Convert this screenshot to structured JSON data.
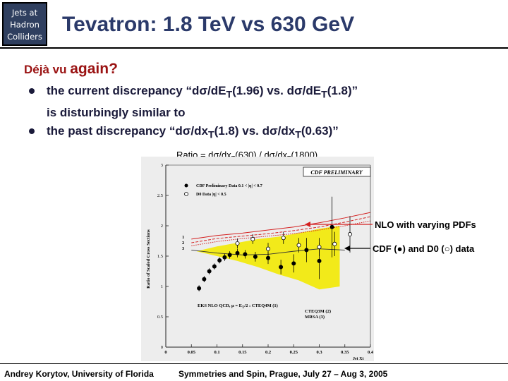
{
  "header": {
    "badge_lines": [
      "Jets at",
      "Hadron",
      "Colliders"
    ],
    "title": "Tevatron: 1.8 TeV vs 630 GeV"
  },
  "subhead": {
    "prefix": "Déjà vu",
    "word": "again?"
  },
  "bullets": {
    "b1_a": "the current discrepancy “d",
    "b1_sigma1": "σ",
    "b1_b": "/dE",
    "b1_sub1": "T",
    "b1_c": "(1.96) vs. d",
    "b1_sigma2": "σ",
    "b1_d": "/dE",
    "b1_sub2": "T",
    "b1_e": "(1.8)”",
    "b1_line2": "is disturbingly similar to",
    "b2_a": "the past discrepancy “d",
    "b2_sigma1": "σ",
    "b2_b": "/dx",
    "b2_sub1": "T",
    "b2_c": "(1.8) vs. d",
    "b2_sigma2": "σ",
    "b2_d": "/dx",
    "b2_sub2": "T",
    "b2_e": "(0.63)”"
  },
  "ratio_caption": {
    "a": "Ratio = dσ/dx",
    "sub1": "T",
    "b": "(630) / dσ/dx",
    "sub2": "T",
    "c": "(1800)"
  },
  "callouts": {
    "nlo": "NLO with varying PDFs",
    "data": "CDF (●) and D0 (○) data"
  },
  "plot": {
    "banner": "CDF PRELIMINARY",
    "legend_cdf": "CDF Preliminary Data 0.1 < |η| < 0.7",
    "legend_d0": "D0 Data |η| < 0.5",
    "ylabel": "Ratio of Scaled Cross Sections",
    "xlabel": "Jet Xt",
    "theory_1": "EKS NLO QCD, μ = E",
    "theory_1b": "T",
    "theory_1c": "/2 : CTEQ4M (1)",
    "theory_2": "CTEQ3M (2)",
    "theory_3": "MRSA (3)",
    "curve_labels": [
      "1",
      "2",
      "3"
    ],
    "colors": {
      "band": "#f2ea1a",
      "nlo": "#d42020",
      "axis": "#222222"
    }
  },
  "chart_data": {
    "type": "scatter",
    "title": "CDF PRELIMINARY",
    "xlabel": "Jet Xt",
    "ylabel": "Ratio of Scaled Cross Sections",
    "xlim": [
      0,
      0.4
    ],
    "ylim": [
      0,
      3
    ],
    "xticks": [
      "0",
      "0.05",
      "0.1",
      "0.15",
      "0.2",
      "0.25",
      "0.3",
      "0.35",
      "0.4"
    ],
    "yticks": [
      "0",
      "0.5",
      "1",
      "1.5",
      "2",
      "2.5",
      "3"
    ],
    "series": [
      {
        "name": "CDF Preliminary Data 0.1 < |η| < 0.7",
        "marker": "filled",
        "x": [
          0.065,
          0.075,
          0.085,
          0.095,
          0.105,
          0.115,
          0.125,
          0.14,
          0.155,
          0.175,
          0.2,
          0.225,
          0.25,
          0.275,
          0.3,
          0.325
        ],
        "y": [
          0.97,
          1.12,
          1.25,
          1.33,
          1.43,
          1.48,
          1.52,
          1.55,
          1.53,
          1.49,
          1.47,
          1.32,
          1.38,
          1.6,
          1.42,
          1.98
        ],
        "err": [
          0.05,
          0.05,
          0.05,
          0.05,
          0.05,
          0.06,
          0.06,
          0.07,
          0.07,
          0.08,
          0.1,
          0.12,
          0.15,
          0.2,
          0.3,
          0.5
        ]
      },
      {
        "name": "D0 Data |η| < 0.5",
        "marker": "open",
        "x": [
          0.14,
          0.17,
          0.2,
          0.23,
          0.26,
          0.3,
          0.33,
          0.36
        ],
        "y": [
          1.71,
          1.78,
          1.62,
          1.8,
          1.68,
          1.65,
          1.7,
          1.86
        ],
        "err": [
          0.08,
          0.08,
          0.1,
          0.1,
          0.12,
          0.15,
          0.2,
          0.3
        ]
      }
    ],
    "theory_curves": [
      {
        "name": "CTEQ4M (1)",
        "x": [
          0.05,
          0.1,
          0.15,
          0.2,
          0.25,
          0.3,
          0.35,
          0.4
        ],
        "y": [
          1.78,
          1.84,
          1.88,
          1.93,
          1.98,
          2.05,
          2.13,
          2.22
        ]
      },
      {
        "name": "CTEQ3M (2)",
        "x": [
          0.05,
          0.1,
          0.15,
          0.2,
          0.25,
          0.3,
          0.35,
          0.4
        ],
        "y": [
          1.72,
          1.79,
          1.83,
          1.87,
          1.92,
          1.98,
          2.06,
          2.15
        ]
      },
      {
        "name": "MRSA (3)",
        "x": [
          0.05,
          0.1,
          0.15,
          0.2,
          0.25,
          0.3,
          0.35,
          0.4
        ],
        "y": [
          1.67,
          1.74,
          1.79,
          1.83,
          1.87,
          1.93,
          2.0,
          2.08
        ]
      }
    ],
    "band": {
      "x": [
        0.06,
        0.1,
        0.14,
        0.18,
        0.22,
        0.26,
        0.3,
        0.34
      ],
      "lower": [
        1.58,
        1.5,
        1.42,
        1.32,
        1.2,
        1.1,
        0.95,
        1.0
      ],
      "upper": [
        1.58,
        1.66,
        1.72,
        1.78,
        1.82,
        1.88,
        1.95,
        2.0
      ]
    },
    "lower_curve": {
      "x": [
        0.05,
        0.1,
        0.15,
        0.2,
        0.25,
        0.3,
        0.35
      ],
      "y": [
        1.6,
        1.55,
        1.52,
        1.53,
        1.58,
        1.62,
        1.6
      ]
    },
    "grid": false,
    "legend": "top-left"
  },
  "footer": {
    "left": "Andrey Korytov, University of Florida",
    "right": "Symmetries and Spin, Prague, July 27 – Aug 3, 2005"
  }
}
